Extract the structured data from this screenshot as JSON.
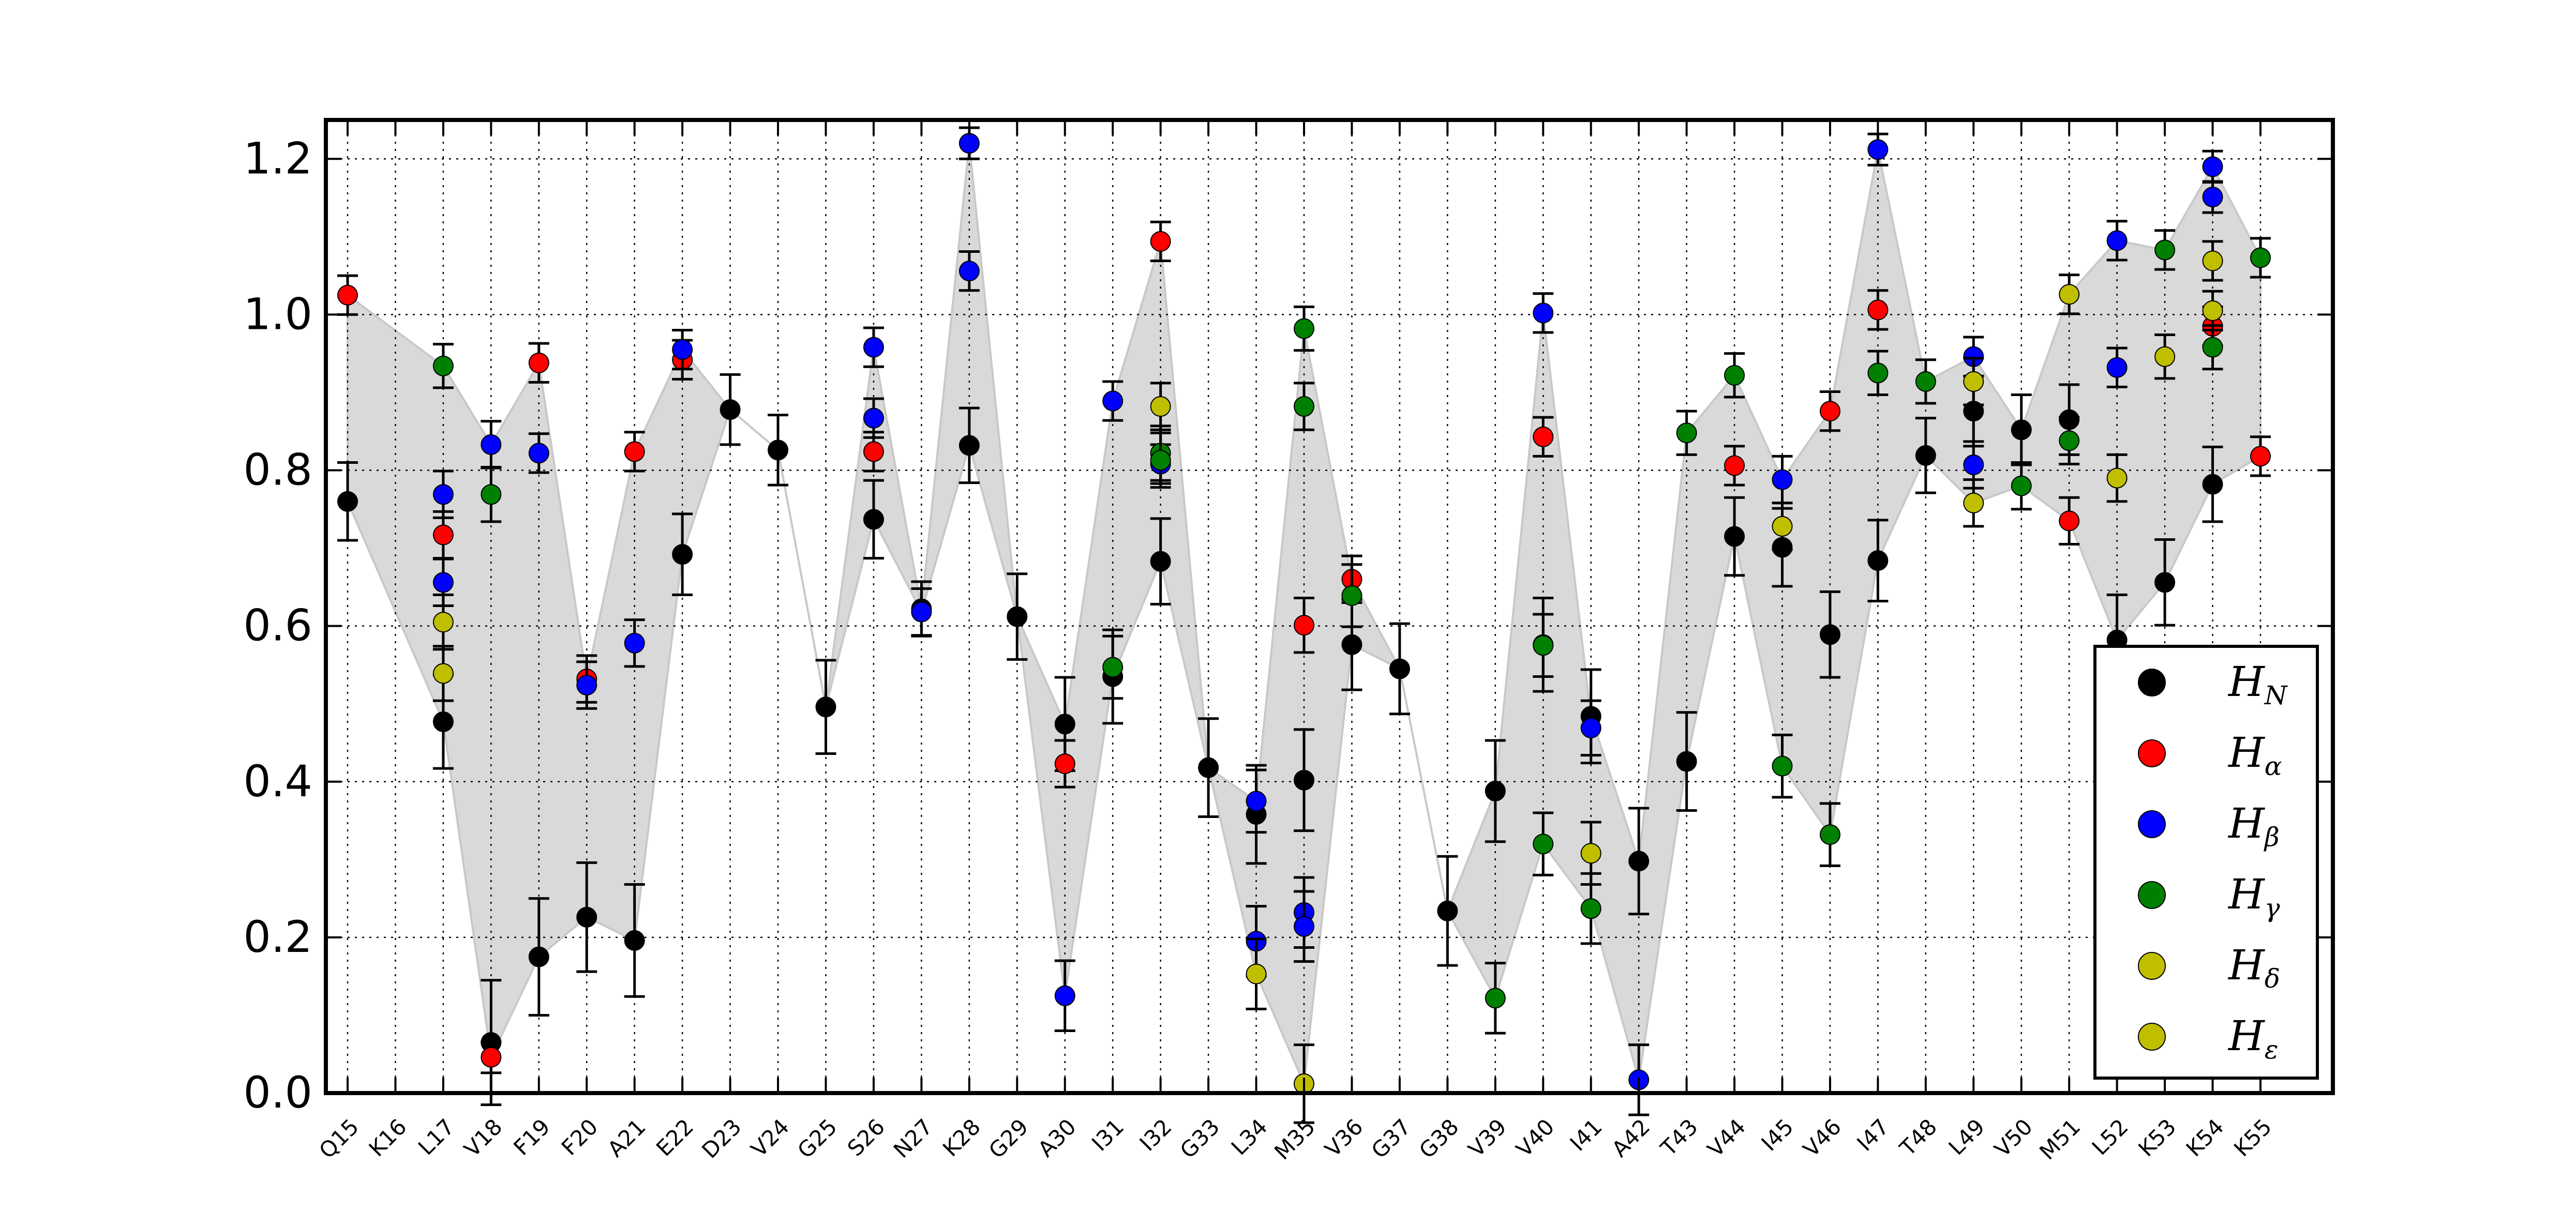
{
  "chart_data": {
    "type": "scatter",
    "title": "",
    "xlabel": "",
    "ylabel": "",
    "ylim": [
      0.0,
      1.25
    ],
    "yticks": [
      "0.0",
      "0.2",
      "0.4",
      "0.6",
      "0.8",
      "1.0",
      "1.2"
    ],
    "grid": true,
    "legend_position": "lower-right",
    "categories": [
      "Q15",
      "K16",
      "L17",
      "V18",
      "F19",
      "F20",
      "A21",
      "E22",
      "D23",
      "V24",
      "G25",
      "S26",
      "N27",
      "K28",
      "G29",
      "A30",
      "I31",
      "I32",
      "G33",
      "L34",
      "M35",
      "V36",
      "G37",
      "G38",
      "V39",
      "V40",
      "I41",
      "A42",
      "T43",
      "V44",
      "I45",
      "V46",
      "I47",
      "T48",
      "L49",
      "V50",
      "M51",
      "L52",
      "K53",
      "K54",
      "K55"
    ],
    "series": [
      {
        "name": "H",
        "sub": "N",
        "color": "#000000",
        "points": [
          {
            "x": "Q15",
            "y": 0.76,
            "err": 0.05
          },
          {
            "x": "L17",
            "y": 0.477,
            "err": 0.06
          },
          {
            "x": "V18",
            "y": 0.065,
            "err": 0.08
          },
          {
            "x": "F19",
            "y": 0.175,
            "err": 0.075
          },
          {
            "x": "F20",
            "y": 0.226,
            "err": 0.07
          },
          {
            "x": "A21",
            "y": 0.196,
            "err": 0.072
          },
          {
            "x": "E22",
            "y": 0.692,
            "err": 0.052
          },
          {
            "x": "D23",
            "y": 0.878,
            "err": 0.045
          },
          {
            "x": "V24",
            "y": 0.826,
            "err": 0.045
          },
          {
            "x": "G25",
            "y": 0.496,
            "err": 0.06
          },
          {
            "x": "S26",
            "y": 0.737,
            "err": 0.05
          },
          {
            "x": "N27",
            "y": 0.622,
            "err": 0.035
          },
          {
            "x": "K28",
            "y": 0.832,
            "err": 0.048
          },
          {
            "x": "G29",
            "y": 0.612,
            "err": 0.055
          },
          {
            "x": "A30",
            "y": 0.474,
            "err": 0.06
          },
          {
            "x": "I31",
            "y": 0.535,
            "err": 0.06
          },
          {
            "x": "I32",
            "y": 0.683,
            "err": 0.055
          },
          {
            "x": "G33",
            "y": 0.418,
            "err": 0.063
          },
          {
            "x": "L34",
            "y": 0.358,
            "err": 0.063
          },
          {
            "x": "M35",
            "y": 0.402,
            "err": 0.065
          },
          {
            "x": "V36",
            "y": 0.576,
            "err": 0.058
          },
          {
            "x": "G37",
            "y": 0.545,
            "err": 0.058
          },
          {
            "x": "G38",
            "y": 0.234,
            "err": 0.07
          },
          {
            "x": "V39",
            "y": 0.388,
            "err": 0.065
          },
          {
            "x": "V40",
            "y": 0.576,
            "err": 0.06
          },
          {
            "x": "I41",
            "y": 0.484,
            "err": 0.06
          },
          {
            "x": "A42",
            "y": 0.298,
            "err": 0.068
          },
          {
            "x": "T43",
            "y": 0.426,
            "err": 0.063
          },
          {
            "x": "V44",
            "y": 0.715,
            "err": 0.05
          },
          {
            "x": "I45",
            "y": 0.701,
            "err": 0.05
          },
          {
            "x": "V46",
            "y": 0.589,
            "err": 0.055
          },
          {
            "x": "I47",
            "y": 0.684,
            "err": 0.052
          },
          {
            "x": "T48",
            "y": 0.819,
            "err": 0.048
          },
          {
            "x": "L49",
            "y": 0.876,
            "err": 0.045
          },
          {
            "x": "V50",
            "y": 0.852,
            "err": 0.045
          },
          {
            "x": "M51",
            "y": 0.865,
            "err": 0.045
          },
          {
            "x": "L52",
            "y": 0.582,
            "err": 0.058
          },
          {
            "x": "K53",
            "y": 0.656,
            "err": 0.055
          },
          {
            "x": "K54",
            "y": 0.782,
            "err": 0.048
          }
        ]
      },
      {
        "name": "H",
        "sub": "α",
        "color": "#ff0000",
        "points": [
          {
            "x": "Q15",
            "y": 1.025,
            "err": 0.025
          },
          {
            "x": "L17",
            "y": 0.717,
            "err": 0.03
          },
          {
            "x": "V18",
            "y": 0.046,
            "err": 0.02
          },
          {
            "x": "F19",
            "y": 0.938,
            "err": 0.025
          },
          {
            "x": "F20",
            "y": 0.532,
            "err": 0.03
          },
          {
            "x": "A21",
            "y": 0.824,
            "err": 0.025
          },
          {
            "x": "E22",
            "y": 0.942,
            "err": 0.025
          },
          {
            "x": "S26",
            "y": 0.824,
            "err": 0.025
          },
          {
            "x": "A30",
            "y": 0.423,
            "err": 0.03
          },
          {
            "x": "I32",
            "y": 1.094,
            "err": 0.025
          },
          {
            "x": "M35",
            "y": 0.601,
            "err": 0.035
          },
          {
            "x": "V36",
            "y": 0.66,
            "err": 0.03
          },
          {
            "x": "V40",
            "y": 0.843,
            "err": 0.025
          },
          {
            "x": "V44",
            "y": 0.806,
            "err": 0.025
          },
          {
            "x": "V46",
            "y": 0.876,
            "err": 0.025
          },
          {
            "x": "I47",
            "y": 1.006,
            "err": 0.025
          },
          {
            "x": "M51",
            "y": 0.735,
            "err": 0.03
          },
          {
            "x": "K54",
            "y": 0.985,
            "err": 0.025
          },
          {
            "x": "K55",
            "y": 0.818,
            "err": 0.025
          }
        ]
      },
      {
        "name": "H",
        "sub": "β",
        "color": "#0000ff",
        "points": [
          {
            "x": "L17",
            "y": 0.769,
            "err": 0.03
          },
          {
            "x": "L17",
            "y": 0.656,
            "err": 0.03
          },
          {
            "x": "V18",
            "y": 0.833,
            "err": 0.03
          },
          {
            "x": "F19",
            "y": 0.822,
            "err": 0.025
          },
          {
            "x": "F20",
            "y": 0.524,
            "err": 0.03
          },
          {
            "x": "A21",
            "y": 0.578,
            "err": 0.03
          },
          {
            "x": "E22",
            "y": 0.955,
            "err": 0.025
          },
          {
            "x": "S26",
            "y": 0.958,
            "err": 0.025
          },
          {
            "x": "S26",
            "y": 0.867,
            "err": 0.025
          },
          {
            "x": "N27",
            "y": 0.618,
            "err": 0.03
          },
          {
            "x": "K28",
            "y": 1.22,
            "err": 0.02
          },
          {
            "x": "K28",
            "y": 1.056,
            "err": 0.025
          },
          {
            "x": "A30",
            "y": 0.125,
            "err": 0.045
          },
          {
            "x": "I31",
            "y": 0.889,
            "err": 0.025
          },
          {
            "x": "I32",
            "y": 0.808,
            "err": 0.025
          },
          {
            "x": "L34",
            "y": 0.375,
            "err": 0.04
          },
          {
            "x": "L34",
            "y": 0.195,
            "err": 0.045
          },
          {
            "x": "M35",
            "y": 0.232,
            "err": 0.045
          },
          {
            "x": "M35",
            "y": 0.214,
            "err": 0.045
          },
          {
            "x": "V40",
            "y": 1.002,
            "err": 0.025
          },
          {
            "x": "I41",
            "y": 0.469,
            "err": 0.035
          },
          {
            "x": "A42",
            "y": 0.017,
            "err": 0.045
          },
          {
            "x": "I45",
            "y": 0.788,
            "err": 0.03
          },
          {
            "x": "I47",
            "y": 1.212,
            "err": 0.02
          },
          {
            "x": "L49",
            "y": 0.946,
            "err": 0.025
          },
          {
            "x": "L49",
            "y": 0.807,
            "err": 0.03
          },
          {
            "x": "L52",
            "y": 1.095,
            "err": 0.025
          },
          {
            "x": "L52",
            "y": 0.932,
            "err": 0.025
          },
          {
            "x": "K54",
            "y": 1.19,
            "err": 0.02
          },
          {
            "x": "K54",
            "y": 1.151,
            "err": 0.02
          }
        ]
      },
      {
        "name": "H",
        "sub": "γ",
        "color": "#008000",
        "points": [
          {
            "x": "L17",
            "y": 0.934,
            "err": 0.028
          },
          {
            "x": "V18",
            "y": 0.769,
            "err": 0.035
          },
          {
            "x": "I31",
            "y": 0.547,
            "err": 0.04
          },
          {
            "x": "I32",
            "y": 0.822,
            "err": 0.035
          },
          {
            "x": "I32",
            "y": 0.813,
            "err": 0.035
          },
          {
            "x": "M35",
            "y": 0.982,
            "err": 0.028
          },
          {
            "x": "M35",
            "y": 0.882,
            "err": 0.03
          },
          {
            "x": "V36",
            "y": 0.639,
            "err": 0.04
          },
          {
            "x": "V39",
            "y": 0.122,
            "err": 0.045
          },
          {
            "x": "V40",
            "y": 0.575,
            "err": 0.04
          },
          {
            "x": "V40",
            "y": 0.32,
            "err": 0.04
          },
          {
            "x": "I41",
            "y": 0.237,
            "err": 0.045
          },
          {
            "x": "T43",
            "y": 0.848,
            "err": 0.028
          },
          {
            "x": "V44",
            "y": 0.922,
            "err": 0.028
          },
          {
            "x": "I45",
            "y": 0.42,
            "err": 0.04
          },
          {
            "x": "V46",
            "y": 0.332,
            "err": 0.04
          },
          {
            "x": "I47",
            "y": 0.925,
            "err": 0.028
          },
          {
            "x": "T48",
            "y": 0.914,
            "err": 0.028
          },
          {
            "x": "V50",
            "y": 0.78,
            "err": 0.03
          },
          {
            "x": "M51",
            "y": 0.838,
            "err": 0.03
          },
          {
            "x": "K53",
            "y": 1.083,
            "err": 0.025
          },
          {
            "x": "K54",
            "y": 0.958,
            "err": 0.028
          },
          {
            "x": "K55",
            "y": 1.073,
            "err": 0.025
          }
        ]
      },
      {
        "name": "H",
        "sub": "δ",
        "color": "#bfbf00",
        "points": [
          {
            "x": "L17",
            "y": 0.605,
            "err": 0.035
          },
          {
            "x": "L17",
            "y": 0.539,
            "err": 0.035
          },
          {
            "x": "I32",
            "y": 0.882,
            "err": 0.03
          },
          {
            "x": "L34",
            "y": 0.153,
            "err": 0.045
          },
          {
            "x": "M35",
            "y": 0.012,
            "err": 0.05
          },
          {
            "x": "I41",
            "y": 0.308,
            "err": 0.04
          },
          {
            "x": "I45",
            "y": 0.728,
            "err": 0.03
          },
          {
            "x": "L49",
            "y": 0.914,
            "err": 0.03
          },
          {
            "x": "L49",
            "y": 0.758,
            "err": 0.03
          },
          {
            "x": "M51",
            "y": 1.026,
            "err": 0.025
          },
          {
            "x": "L52",
            "y": 0.79,
            "err": 0.03
          },
          {
            "x": "K53",
            "y": 0.946,
            "err": 0.028
          },
          {
            "x": "K54",
            "y": 1.069,
            "err": 0.025
          },
          {
            "x": "K54",
            "y": 1.005,
            "err": 0.025
          }
        ]
      },
      {
        "name": "H",
        "sub": "ε",
        "color": "#bfbf00",
        "points": []
      }
    ],
    "envelope_color": "#d9d9d9"
  }
}
